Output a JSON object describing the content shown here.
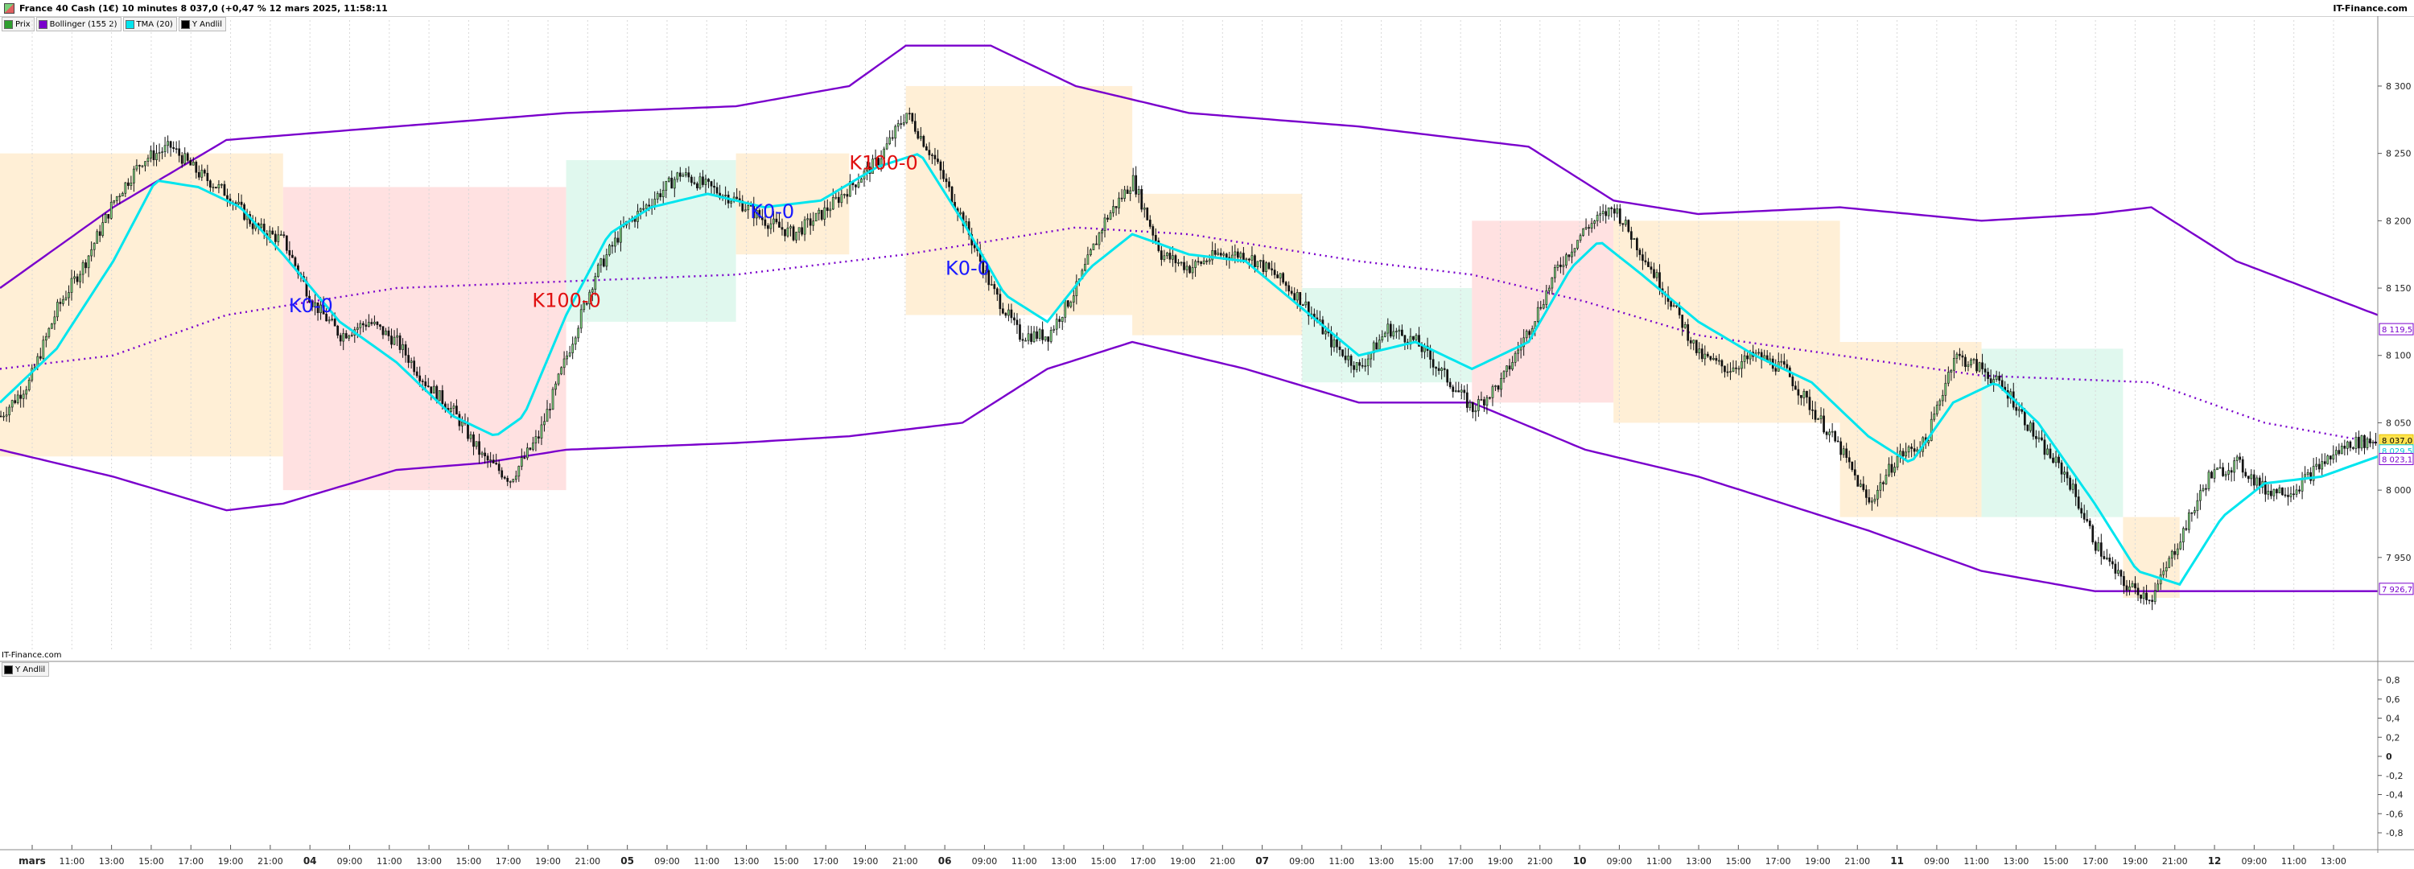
{
  "header": {
    "title": "France 40 Cash (1€) 10 minutes 8 037,0 (+0,47 % 12 mars 2025, 11:58:11",
    "brand": "IT-Finance.com",
    "title_icon": "chart-icon"
  },
  "legend": [
    {
      "label": "Prix",
      "color": "#2e9e2e"
    },
    {
      "label": "Bollinger (155 2)",
      "color": "#7a00cc"
    },
    {
      "label": "TMA (20)",
      "color": "#00e5ee"
    },
    {
      "label": "Y Andlil",
      "color": "#000000"
    }
  ],
  "subpane": {
    "brand": "IT-Finance.com",
    "legend_label": "Y Andlil",
    "ticks": [
      "0,8",
      "0,6",
      "0,4",
      "0,2",
      "0",
      "-0,2",
      "-0,4",
      "-0,6",
      "-0,8"
    ]
  },
  "chart_data": {
    "type": "candlestick",
    "instrument": "France 40 Cash (1€)",
    "timeframe": "10 minutes",
    "last": 8037.0,
    "change_pct": 0.47,
    "ylim": [
      7880,
      8340
    ],
    "y_ticks": [
      {
        "value": 8300,
        "label": "8 300"
      },
      {
        "value": 8250,
        "label": "8 250"
      },
      {
        "value": 8200,
        "label": "8 200"
      },
      {
        "value": 8150,
        "label": "8 150"
      },
      {
        "value": 8100,
        "label": "8 100"
      },
      {
        "value": 8050,
        "label": "8 050"
      },
      {
        "value": 8000,
        "label": "8 000"
      },
      {
        "value": 7950,
        "label": "7 950"
      }
    ],
    "value_tags": [
      {
        "value": 8119.5,
        "label": "8 119,5",
        "color": "#7a00cc"
      },
      {
        "value": 8037.0,
        "label": "8 037,0",
        "color": "#e6c200"
      },
      {
        "value": 8029.5,
        "label": "8 029,5",
        "color": "#00c8d8"
      },
      {
        "value": 8023.1,
        "label": "8 023,1",
        "color": "#7a00cc"
      },
      {
        "value": 7926.7,
        "label": "7 926,7",
        "color": "#7a00cc"
      }
    ],
    "x_ticks": [
      {
        "label": "mars",
        "bold": true
      },
      {
        "label": "11:00"
      },
      {
        "label": "13:00"
      },
      {
        "label": "15:00"
      },
      {
        "label": "17:00"
      },
      {
        "label": "19:00"
      },
      {
        "label": "21:00"
      },
      {
        "label": "04",
        "bold": true
      },
      {
        "label": "09:00"
      },
      {
        "label": "11:00"
      },
      {
        "label": "13:00"
      },
      {
        "label": "15:00"
      },
      {
        "label": "17:00"
      },
      {
        "label": "19:00"
      },
      {
        "label": "21:00"
      },
      {
        "label": "05",
        "bold": true
      },
      {
        "label": "09:00"
      },
      {
        "label": "11:00"
      },
      {
        "label": "13:00"
      },
      {
        "label": "15:00"
      },
      {
        "label": "17:00"
      },
      {
        "label": "19:00"
      },
      {
        "label": "21:00"
      },
      {
        "label": "06",
        "bold": true
      },
      {
        "label": "09:00"
      },
      {
        "label": "11:00"
      },
      {
        "label": "13:00"
      },
      {
        "label": "15:00"
      },
      {
        "label": "17:00"
      },
      {
        "label": "19:00"
      },
      {
        "label": "21:00"
      },
      {
        "label": "07",
        "bold": true
      },
      {
        "label": "09:00"
      },
      {
        "label": "11:00"
      },
      {
        "label": "13:00"
      },
      {
        "label": "15:00"
      },
      {
        "label": "17:00"
      },
      {
        "label": "19:00"
      },
      {
        "label": "21:00"
      },
      {
        "label": "10",
        "bold": true
      },
      {
        "label": "09:00"
      },
      {
        "label": "11:00"
      },
      {
        "label": "13:00"
      },
      {
        "label": "15:00"
      },
      {
        "label": "17:00"
      },
      {
        "label": "19:00"
      },
      {
        "label": "21:00"
      },
      {
        "label": "11",
        "bold": true
      },
      {
        "label": "09:00"
      },
      {
        "label": "11:00"
      },
      {
        "label": "13:00"
      },
      {
        "label": "15:00"
      },
      {
        "label": "17:00"
      },
      {
        "label": "19:00"
      },
      {
        "label": "21:00"
      },
      {
        "label": "12",
        "bold": true
      },
      {
        "label": "09:00"
      },
      {
        "label": "11:00"
      },
      {
        "label": "13:00"
      }
    ],
    "price_path": [
      [
        0,
        8055
      ],
      [
        10,
        8080
      ],
      [
        20,
        8135
      ],
      [
        30,
        8170
      ],
      [
        40,
        8215
      ],
      [
        50,
        8245
      ],
      [
        60,
        8255
      ],
      [
        70,
        8235
      ],
      [
        80,
        8220
      ],
      [
        90,
        8195
      ],
      [
        100,
        8185
      ],
      [
        110,
        8140
      ],
      [
        120,
        8115
      ],
      [
        130,
        8125
      ],
      [
        140,
        8110
      ],
      [
        150,
        8080
      ],
      [
        160,
        8058
      ],
      [
        170,
        8025
      ],
      [
        180,
        8008
      ],
      [
        190,
        8040
      ],
      [
        200,
        8100
      ],
      [
        210,
        8160
      ],
      [
        220,
        8195
      ],
      [
        230,
        8215
      ],
      [
        240,
        8235
      ],
      [
        250,
        8225
      ],
      [
        260,
        8215
      ],
      [
        270,
        8200
      ],
      [
        280,
        8190
      ],
      [
        290,
        8205
      ],
      [
        300,
        8225
      ],
      [
        310,
        8245
      ],
      [
        320,
        8280
      ],
      [
        330,
        8245
      ],
      [
        340,
        8200
      ],
      [
        350,
        8150
      ],
      [
        360,
        8115
      ],
      [
        370,
        8115
      ],
      [
        380,
        8150
      ],
      [
        390,
        8200
      ],
      [
        400,
        8230
      ],
      [
        410,
        8175
      ],
      [
        420,
        8165
      ],
      [
        430,
        8175
      ],
      [
        440,
        8175
      ],
      [
        450,
        8160
      ],
      [
        460,
        8140
      ],
      [
        470,
        8110
      ],
      [
        480,
        8090
      ],
      [
        490,
        8120
      ],
      [
        500,
        8110
      ],
      [
        510,
        8085
      ],
      [
        520,
        8060
      ],
      [
        530,
        8080
      ],
      [
        540,
        8120
      ],
      [
        550,
        8165
      ],
      [
        560,
        8195
      ],
      [
        570,
        8210
      ],
      [
        580,
        8175
      ],
      [
        590,
        8140
      ],
      [
        600,
        8100
      ],
      [
        610,
        8090
      ],
      [
        620,
        8100
      ],
      [
        630,
        8090
      ],
      [
        640,
        8060
      ],
      [
        650,
        8030
      ],
      [
        660,
        7990
      ],
      [
        670,
        8025
      ],
      [
        680,
        8035
      ],
      [
        690,
        8100
      ],
      [
        700,
        8090
      ],
      [
        710,
        8070
      ],
      [
        720,
        8035
      ],
      [
        730,
        8010
      ],
      [
        740,
        7960
      ],
      [
        750,
        7930
      ],
      [
        760,
        7920
      ],
      [
        770,
        7965
      ],
      [
        780,
        8010
      ],
      [
        790,
        8020
      ],
      [
        800,
        8000
      ],
      [
        810,
        8000
      ],
      [
        820,
        8020
      ],
      [
        830,
        8035
      ],
      [
        840,
        8037
      ]
    ],
    "tma_path": [
      [
        0,
        8065
      ],
      [
        20,
        8105
      ],
      [
        40,
        8170
      ],
      [
        55,
        8230
      ],
      [
        70,
        8225
      ],
      [
        85,
        8210
      ],
      [
        100,
        8175
      ],
      [
        120,
        8125
      ],
      [
        140,
        8095
      ],
      [
        160,
        8055
      ],
      [
        175,
        8040
      ],
      [
        185,
        8055
      ],
      [
        200,
        8130
      ],
      [
        215,
        8190
      ],
      [
        230,
        8210
      ],
      [
        250,
        8220
      ],
      [
        270,
        8210
      ],
      [
        290,
        8215
      ],
      [
        310,
        8240
      ],
      [
        325,
        8250
      ],
      [
        340,
        8200
      ],
      [
        355,
        8145
      ],
      [
        370,
        8125
      ],
      [
        385,
        8165
      ],
      [
        400,
        8190
      ],
      [
        420,
        8175
      ],
      [
        440,
        8170
      ],
      [
        460,
        8135
      ],
      [
        480,
        8100
      ],
      [
        500,
        8110
      ],
      [
        520,
        8090
      ],
      [
        540,
        8110
      ],
      [
        555,
        8165
      ],
      [
        565,
        8185
      ],
      [
        580,
        8160
      ],
      [
        600,
        8125
      ],
      [
        620,
        8100
      ],
      [
        640,
        8080
      ],
      [
        660,
        8040
      ],
      [
        675,
        8020
      ],
      [
        690,
        8065
      ],
      [
        705,
        8080
      ],
      [
        720,
        8050
      ],
      [
        740,
        7990
      ],
      [
        755,
        7940
      ],
      [
        770,
        7930
      ],
      [
        785,
        7980
      ],
      [
        800,
        8005
      ],
      [
        820,
        8010
      ],
      [
        840,
        8025
      ]
    ],
    "bollinger_upper": [
      [
        0,
        8150
      ],
      [
        40,
        8210
      ],
      [
        80,
        8260
      ],
      [
        140,
        8270
      ],
      [
        200,
        8280
      ],
      [
        260,
        8285
      ],
      [
        300,
        8300
      ],
      [
        320,
        8330
      ],
      [
        350,
        8330
      ],
      [
        380,
        8300
      ],
      [
        420,
        8280
      ],
      [
        480,
        8270
      ],
      [
        540,
        8255
      ],
      [
        570,
        8215
      ],
      [
        600,
        8205
      ],
      [
        650,
        8210
      ],
      [
        700,
        8200
      ],
      [
        740,
        8205
      ],
      [
        760,
        8210
      ],
      [
        790,
        8170
      ],
      [
        840,
        8130
      ]
    ],
    "bollinger_lower": [
      [
        0,
        8030
      ],
      [
        40,
        8010
      ],
      [
        80,
        7985
      ],
      [
        100,
        7990
      ],
      [
        140,
        8015
      ],
      [
        170,
        8020
      ],
      [
        200,
        8030
      ],
      [
        260,
        8035
      ],
      [
        300,
        8040
      ],
      [
        340,
        8050
      ],
      [
        370,
        8090
      ],
      [
        400,
        8110
      ],
      [
        440,
        8090
      ],
      [
        480,
        8065
      ],
      [
        520,
        8065
      ],
      [
        560,
        8030
      ],
      [
        600,
        8010
      ],
      [
        630,
        7990
      ],
      [
        660,
        7970
      ],
      [
        700,
        7940
      ],
      [
        740,
        7925
      ],
      [
        770,
        7925
      ],
      [
        800,
        7925
      ],
      [
        840,
        7925
      ]
    ],
    "bollinger_mid": [
      [
        0,
        8090
      ],
      [
        40,
        8100
      ],
      [
        80,
        8130
      ],
      [
        140,
        8150
      ],
      [
        200,
        8155
      ],
      [
        260,
        8160
      ],
      [
        300,
        8170
      ],
      [
        320,
        8175
      ],
      [
        380,
        8195
      ],
      [
        420,
        8190
      ],
      [
        480,
        8170
      ],
      [
        520,
        8160
      ],
      [
        560,
        8140
      ],
      [
        600,
        8115
      ],
      [
        650,
        8100
      ],
      [
        700,
        8085
      ],
      [
        760,
        8080
      ],
      [
        800,
        8050
      ],
      [
        840,
        8035
      ]
    ],
    "zone_bands": [
      {
        "x0": 0,
        "x1": 100,
        "y0": 8025,
        "y1": 8250,
        "color": "#ffe9c8"
      },
      {
        "x0": 100,
        "x1": 200,
        "y0": 8000,
        "y1": 8225,
        "color": "#ffd7d7"
      },
      {
        "x0": 200,
        "x1": 260,
        "y0": 8125,
        "y1": 8245,
        "color": "#d6f5e8"
      },
      {
        "x0": 260,
        "x1": 300,
        "y0": 8175,
        "y1": 8250,
        "color": "#ffe9c8"
      },
      {
        "x0": 320,
        "x1": 400,
        "y0": 8130,
        "y1": 8300,
        "color": "#ffe9c8"
      },
      {
        "x0": 400,
        "x1": 460,
        "y0": 8115,
        "y1": 8220,
        "color": "#ffe9c8"
      },
      {
        "x0": 460,
        "x1": 520,
        "y0": 8080,
        "y1": 8150,
        "color": "#d6f5e8"
      },
      {
        "x0": 520,
        "x1": 570,
        "y0": 8065,
        "y1": 8200,
        "color": "#ffd7d7"
      },
      {
        "x0": 570,
        "x1": 650,
        "y0": 8050,
        "y1": 8200,
        "color": "#ffe9c8"
      },
      {
        "x0": 650,
        "x1": 700,
        "y0": 7980,
        "y1": 8110,
        "color": "#ffe9c8"
      },
      {
        "x0": 700,
        "x1": 750,
        "y0": 7980,
        "y1": 8105,
        "color": "#d6f5e8"
      },
      {
        "x0": 750,
        "x1": 770,
        "y0": 7920,
        "y1": 7980,
        "color": "#ffe9c8"
      }
    ],
    "annotations": [
      {
        "label": "K0-0",
        "x": 102,
        "y": 8132,
        "color": "#1a1aff"
      },
      {
        "label": "K100-0",
        "x": 188,
        "y": 8136,
        "color": "#e01010"
      },
      {
        "label": "K0-0",
        "x": 265,
        "y": 8202,
        "color": "#1a1aff"
      },
      {
        "label": "K100-0",
        "x": 300,
        "y": 8238,
        "color": "#e01010"
      },
      {
        "label": "K0-0",
        "x": 334,
        "y": 8160,
        "color": "#1a1aff"
      }
    ],
    "n_bars": 840
  }
}
